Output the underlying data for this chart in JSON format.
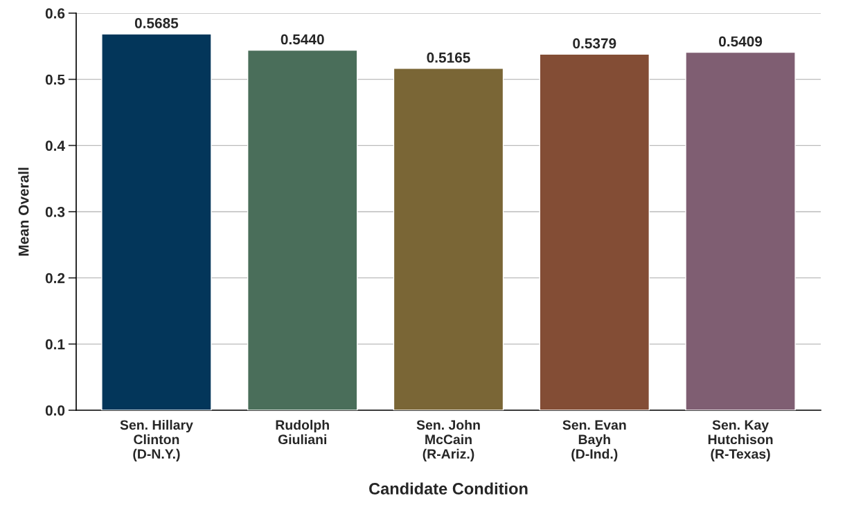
{
  "chart_data": {
    "type": "bar",
    "xlabel": "Candidate Condition",
    "ylabel": "Mean Overall",
    "categories": [
      "Sen. Hillary\nClinton\n(D-N.Y.)",
      "Rudolph\nGiuliani",
      "Sen. John\nMcCain\n(R-Ariz.)",
      "Sen. Evan\nBayh\n(D-Ind.)",
      "Sen. Kay\nHutchison\n(R-Texas)"
    ],
    "values": [
      0.5685,
      0.544,
      0.5165,
      0.5379,
      0.5409
    ],
    "value_labels": [
      "0.5685",
      "0.5440",
      "0.5165",
      "0.5379",
      "0.5409"
    ],
    "colors": [
      "#03365a",
      "#4a6e5a",
      "#7a6636",
      "#834d35",
      "#7f5e72"
    ],
    "ylim": [
      0,
      0.6
    ],
    "yticks": [
      {
        "value": 0,
        "label": "0.0"
      },
      0.1,
      0.2,
      0.3,
      0.4,
      0.5,
      0.6
    ],
    "grid": "y",
    "legend": false
  }
}
